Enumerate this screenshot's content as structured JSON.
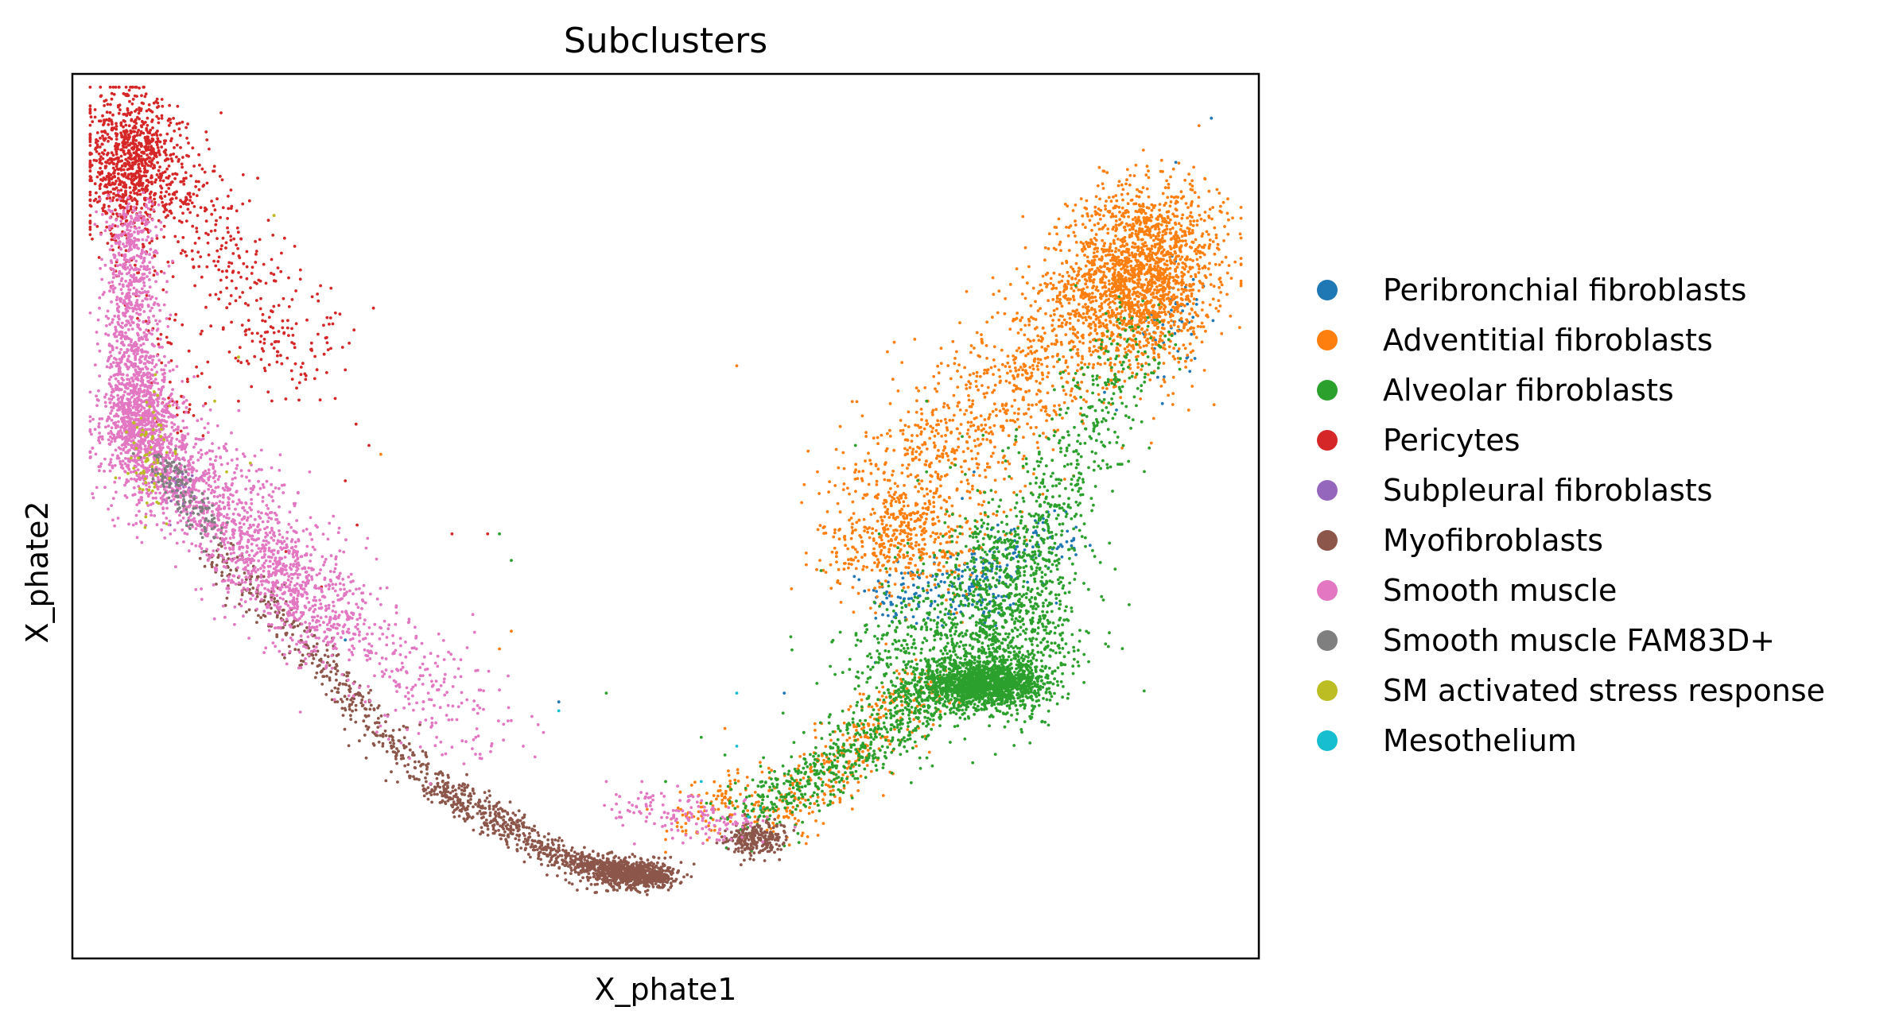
{
  "chart_data": {
    "type": "scatter",
    "title": "Subclusters",
    "xlabel": "X_phate1",
    "ylabel": "X_phate2",
    "xticks": [],
    "yticks": [],
    "grid": false,
    "legend_position": "right",
    "xlim": [
      0,
      100
    ],
    "ylim": [
      0,
      100
    ],
    "series": [
      {
        "name": "Peribronchial fibroblasts",
        "color": "#1f77b4",
        "points": [
          [
            96,
            95
          ],
          [
            93,
            90
          ],
          [
            92,
            75
          ],
          [
            90,
            72
          ],
          [
            88,
            62
          ],
          [
            76,
            55
          ],
          [
            75,
            52
          ],
          [
            70,
            43
          ],
          [
            69,
            40
          ],
          [
            60,
            30
          ],
          [
            41,
            29
          ],
          [
            23,
            36
          ],
          [
            94,
            68
          ],
          [
            87,
            64
          ],
          [
            78,
            49
          ]
        ],
        "clusters": [
          {
            "center": [
              76,
              42
            ],
            "spread": [
              2.5,
              2.5
            ],
            "count": 140
          },
          {
            "center": [
              70,
              41
            ],
            "spread": [
              1.5,
              1.8
            ],
            "count": 60
          },
          {
            "center": [
              81,
              47
            ],
            "spread": [
              2.0,
              1.5
            ],
            "count": 60
          },
          {
            "center": [
              93,
              72
            ],
            "spread": [
              1.5,
              4.0
            ],
            "count": 50
          }
        ]
      },
      {
        "name": "Adventitial fibroblasts",
        "color": "#ff7f0e",
        "points": [
          [
            56,
            67
          ],
          [
            78,
            73
          ],
          [
            76,
            69
          ],
          [
            73,
            65
          ],
          [
            65,
            53
          ],
          [
            63,
            45
          ],
          [
            55,
            26
          ],
          [
            50,
            12
          ],
          [
            36,
            35
          ],
          [
            37,
            37
          ],
          [
            75,
            38
          ],
          [
            67,
            25
          ],
          [
            17,
            84
          ],
          [
            26,
            57
          ],
          [
            71,
            70
          ]
        ],
        "path_clusters": [
          {
            "from": [
              68,
              50
            ],
            "to": [
              94,
              84
            ],
            "spread": 3.5,
            "count": 1300
          },
          {
            "from": [
              59,
              15
            ],
            "to": [
              72,
              32
            ],
            "spread": 1.8,
            "count": 350
          },
          {
            "from": [
              51,
              15
            ],
            "to": [
              58,
              20
            ],
            "spread": 1.5,
            "count": 100
          }
        ],
        "clusters": [
          {
            "center": [
              90,
              77
            ],
            "spread": [
              3.0,
              5.0
            ],
            "count": 1500
          },
          {
            "center": [
              70,
              47
            ],
            "spread": [
              3.5,
              3.0
            ],
            "count": 400
          }
        ]
      },
      {
        "name": "Alveolar fibroblasts",
        "color": "#2ca02c",
        "points": [
          [
            36,
            48
          ],
          [
            37,
            45
          ],
          [
            72,
            63
          ],
          [
            75,
            59
          ],
          [
            45,
            30
          ],
          [
            53,
            25
          ],
          [
            66,
            58
          ],
          [
            68,
            48
          ],
          [
            72,
            55
          ],
          [
            55,
            23
          ],
          [
            50,
            20
          ]
        ],
        "clusters": [
          {
            "center": [
              77,
              31
            ],
            "spread": [
              2.5,
              1.2
            ],
            "count": 1400
          },
          {
            "center": [
              79,
              40
            ],
            "spread": [
              3.0,
              6.0
            ],
            "count": 900
          },
          {
            "center": [
              73,
              34
            ],
            "spread": [
              4.0,
              4.0
            ],
            "count": 500
          }
        ],
        "path_clusters": [
          {
            "from": [
              57,
              16
            ],
            "to": [
              77,
              34
            ],
            "spread": 1.8,
            "count": 700
          },
          {
            "from": [
              80,
              45
            ],
            "to": [
              90,
              72
            ],
            "spread": 2.0,
            "count": 400
          }
        ]
      },
      {
        "name": "Pericytes",
        "color": "#d62728",
        "points": [
          [
            25,
            58
          ],
          [
            23,
            54
          ],
          [
            18,
            46
          ],
          [
            21,
            42
          ],
          [
            32,
            48
          ],
          [
            35,
            48
          ],
          [
            24,
            49
          ],
          [
            14,
            63
          ],
          [
            17,
            69
          ],
          [
            13,
            77
          ]
        ],
        "clusters": [
          {
            "center": [
              5,
              90
            ],
            "spread": [
              2.0,
              4.0
            ],
            "count": 900
          }
        ],
        "path_clusters": [
          {
            "from": [
              5,
              94
            ],
            "to": [
              20,
              66
            ],
            "spread": 2.5,
            "count": 400
          },
          {
            "from": [
              5,
              82
            ],
            "to": [
              10,
              60
            ],
            "spread": 1.5,
            "count": 80
          }
        ]
      },
      {
        "name": "Subpleural fibroblasts",
        "color": "#9467bd",
        "points": [],
        "clusters": [
          {
            "center": [
              9,
              53
            ],
            "spread": [
              1.0,
              1.5
            ],
            "count": 40
          }
        ]
      },
      {
        "name": "Myofibroblasts",
        "color": "#8c564b",
        "points": [
          [
            20,
            37
          ],
          [
            23,
            31
          ],
          [
            27,
            25
          ],
          [
            30,
            22
          ]
        ],
        "path_clusters": [
          {
            "from": [
              12,
              46
            ],
            "to": [
              30,
              20
            ],
            "spread": 1.0,
            "count": 400
          },
          {
            "from": [
              30,
              20
            ],
            "to": [
              42,
              11
            ],
            "spread": 0.9,
            "count": 450
          },
          {
            "from": [
              42,
              11
            ],
            "to": [
              50,
              9
            ],
            "spread": 0.7,
            "count": 500
          }
        ],
        "clusters": [
          {
            "center": [
              47,
              9.5
            ],
            "spread": [
              1.8,
              0.8
            ],
            "count": 500
          },
          {
            "center": [
              57.5,
              13.5
            ],
            "spread": [
              1.2,
              1.0
            ],
            "count": 250
          }
        ]
      },
      {
        "name": "Smooth muscle",
        "color": "#e377c2",
        "points": [
          [
            20,
            55
          ],
          [
            22,
            50
          ],
          [
            26,
            40
          ],
          [
            29,
            35
          ],
          [
            32,
            27
          ],
          [
            34,
            25
          ],
          [
            38,
            24
          ],
          [
            30,
            30
          ],
          [
            33,
            22
          ],
          [
            45,
            20
          ],
          [
            48,
            20
          ],
          [
            6,
            72
          ],
          [
            7,
            80
          ]
        ],
        "path_clusters": [
          {
            "from": [
              5,
              85
            ],
            "to": [
              5,
              60
            ],
            "spread": 1.2,
            "count": 900
          },
          {
            "from": [
              5,
              60
            ],
            "to": [
              22,
              38
            ],
            "spread": 2.5,
            "count": 1600
          },
          {
            "from": [
              22,
              38
            ],
            "to": [
              34,
              26
            ],
            "spread": 3.0,
            "count": 250
          },
          {
            "from": [
              46,
              17
            ],
            "to": [
              57,
              15
            ],
            "spread": 1.2,
            "count": 150
          }
        ],
        "clusters": [
          {
            "center": [
              6,
              60
            ],
            "spread": [
              1.5,
              4.0
            ],
            "count": 600
          }
        ]
      },
      {
        "name": "Smooth muscle FAM83D+",
        "color": "#7f7f7f",
        "points": [],
        "path_clusters": [
          {
            "from": [
              7,
              57
            ],
            "to": [
              12,
              48
            ],
            "spread": 0.8,
            "count": 150
          }
        ]
      },
      {
        "name": "SM activated stress response",
        "color": "#bcbd22",
        "points": [
          [
            12,
            63
          ],
          [
            14,
            68
          ],
          [
            17,
            84
          ],
          [
            13,
            55
          ],
          [
            15,
            56
          ],
          [
            7,
            66
          ]
        ],
        "clusters": [
          {
            "center": [
              6.5,
              57
            ],
            "spread": [
              1.0,
              3.0
            ],
            "count": 70
          }
        ]
      },
      {
        "name": "Mesothelium",
        "color": "#17becf",
        "points": [
          [
            41,
            28
          ],
          [
            56,
            30
          ],
          [
            57,
            16
          ],
          [
            58,
            17
          ],
          [
            53,
            20
          ],
          [
            56,
            24
          ]
        ]
      }
    ]
  }
}
